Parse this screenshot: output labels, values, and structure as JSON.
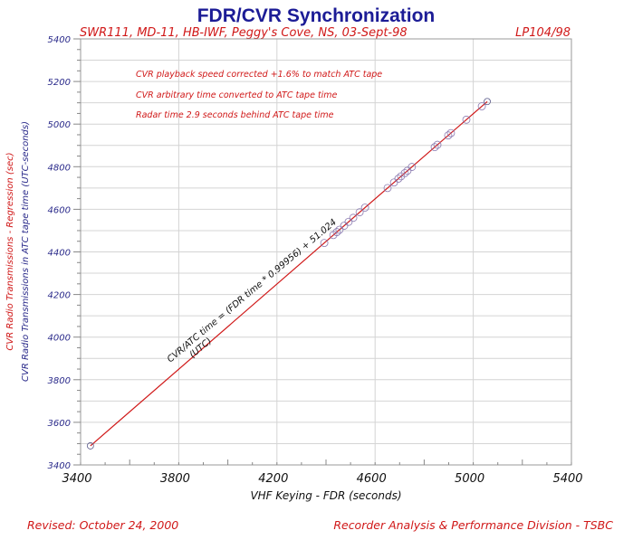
{
  "chart_data": {
    "type": "scatter",
    "title": "FDR/CVR Synchronization",
    "subtitle_left": "SWR111, MD-11, HB-IWF, Peggy's Cove, NS, 03-Sept-98",
    "subtitle_right": "LP104/98",
    "notes": [
      "CVR playback speed corrected +1.6% to match ATC tape",
      "CVR arbitrary time converted to ATC tape time",
      "Radar time 2.9 seconds behind ATC tape time"
    ],
    "xlabel": "VHF Keying - FDR (seconds)",
    "ylabel_regression": "CVR Radio Transmissions - Regression (sec)",
    "ylabel_data": "CVR Radio Transmissions in ATC tape time (UTC-seconds)",
    "xlim": [
      3400,
      5400
    ],
    "ylim": [
      3400,
      5400
    ],
    "xticks": [
      "3400",
      "3800",
      "4200",
      "4600",
      "5000",
      "5400"
    ],
    "yticks": [
      "3400",
      "3600",
      "3800",
      "4000",
      "4200",
      "4400",
      "4600",
      "4800",
      "5000",
      "5200",
      "5400"
    ],
    "grid": true,
    "regression": {
      "slope": 0.99956,
      "intercept": 51.024,
      "x_range": [
        3440,
        5057
      ],
      "label": "CVR/ATC time = (FDR time * 0.99956) + 51.024",
      "label2": "(UTC)",
      "color": "#d01818"
    },
    "points_x": [
      3440,
      4393,
      4430,
      4444,
      4455,
      4474,
      4492,
      4511,
      4537,
      4559,
      4651,
      4677,
      4695,
      4706,
      4721,
      4732,
      4750,
      4843,
      4854,
      4898,
      4909,
      4972,
      5035,
      5057
    ],
    "point_color": "#8a7ab0",
    "footer_left": "Revised: October 24, 2000",
    "footer_right": "Recorder Analysis & Performance Division - TSBC"
  }
}
